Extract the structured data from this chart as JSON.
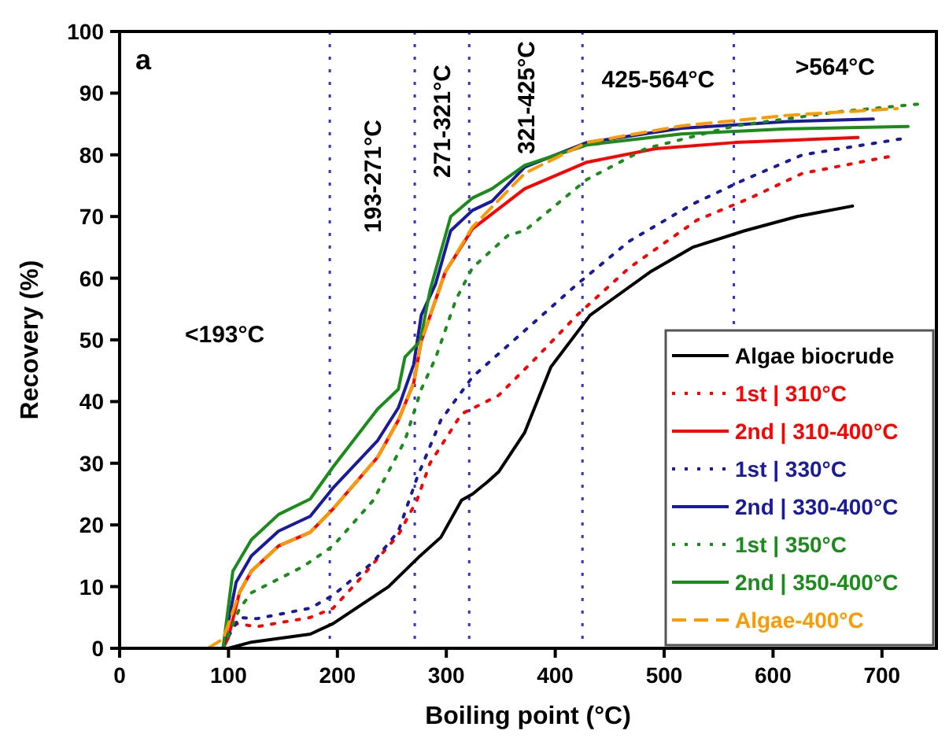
{
  "chart_data": {
    "type": "line",
    "xlabel": "Boiling point (°C)",
    "ylabel": "Recovery (%)",
    "xlim": [
      0,
      750
    ],
    "ylim": [
      0,
      100
    ],
    "xticks": [
      0,
      100,
      200,
      300,
      400,
      500,
      600,
      700
    ],
    "yticks": [
      0,
      10,
      20,
      30,
      40,
      50,
      60,
      70,
      80,
      90,
      100
    ],
    "grid": false,
    "legend": "bottom right",
    "marker": "none",
    "annotations": [
      "a",
      "<193°C",
      "193-271°C",
      "271-321°C",
      "321-425°C",
      "425-564°C",
      ">564°C"
    ],
    "ref_lines": [
      {
        "axis": "x",
        "value": 193,
        "color": "#3333cc",
        "line_style": "dotted"
      },
      {
        "axis": "x",
        "value": 271,
        "color": "#3333cc",
        "line_style": "dotted"
      },
      {
        "axis": "x",
        "value": 321,
        "color": "#3333cc",
        "line_style": "dotted"
      },
      {
        "axis": "x",
        "value": 425,
        "color": "#3333cc",
        "line_style": "dotted"
      },
      {
        "axis": "x",
        "value": 564,
        "color": "#3333cc",
        "line_style": "dotted"
      }
    ],
    "series": [
      {
        "name": "Algae biocrude",
        "color": "#000000",
        "line_style": "solid",
        "x": [
          95,
          100,
          121,
          175,
          196,
          247,
          276,
          295,
          314,
          324,
          338,
          348,
          372,
          396,
          432,
          487,
          526,
          574,
          622,
          673
        ],
        "values": [
          0,
          0,
          1,
          2.3,
          4,
          10,
          15,
          18,
          24,
          25,
          27,
          28.6,
          35,
          45.6,
          54,
          61,
          65,
          67.7,
          70,
          71.7
        ]
      },
      {
        "name": "1st | 310°C",
        "color": "#ff0000",
        "line_style": "dotted",
        "x": [
          100,
          107,
          126,
          175,
          196,
          218,
          256,
          273,
          285,
          314,
          348,
          382,
          420,
          468,
          530,
          579,
          627,
          709
        ],
        "values": [
          2,
          4,
          3.5,
          5,
          6.5,
          10.7,
          18.4,
          24,
          30,
          38,
          41,
          47,
          54,
          61.7,
          69.4,
          73,
          77,
          79.8
        ]
      },
      {
        "name": "2nd | 310-400°C",
        "color": "#ff0000",
        "line_style": "solid",
        "x": [
          95,
          100,
          110,
          121,
          146,
          175,
          196,
          237,
          256,
          270,
          277,
          299,
          324,
          372,
          429,
          492,
          565,
          678
        ],
        "values": [
          0,
          1.8,
          9,
          12.5,
          16.6,
          18.8,
          22.6,
          31,
          37,
          43,
          49.8,
          61,
          68,
          74.5,
          78.8,
          81,
          82,
          82.8
        ]
      },
      {
        "name": "1st | 330°C",
        "color": "#1a1a9c",
        "line_style": "dotted",
        "x": [
          100,
          110,
          126,
          175,
          196,
          233,
          256,
          273,
          295,
          324,
          372,
          420,
          468,
          526,
          574,
          627,
          718
        ],
        "values": [
          2,
          5,
          4.8,
          6.5,
          8.6,
          14,
          19,
          27.6,
          37,
          44,
          51.5,
          59,
          66,
          72,
          76,
          80,
          82.6
        ]
      },
      {
        "name": "2nd | 330-400°C",
        "color": "#1a1a9c",
        "line_style": "solid",
        "x": [
          95,
          107,
          121,
          146,
          175,
          196,
          237,
          256,
          270,
          277,
          290,
          304,
          324,
          342,
          372,
          429,
          516,
          613,
          692
        ],
        "values": [
          0,
          10.7,
          15,
          19,
          21.4,
          26,
          33.7,
          39,
          46,
          54,
          59,
          67.7,
          71,
          72.5,
          78,
          82,
          84.3,
          85.4,
          85.8
        ]
      },
      {
        "name": "1st | 350°C",
        "color": "#1a8c1a",
        "line_style": "dotted",
        "x": [
          95,
          110,
          121,
          169,
          196,
          233,
          262,
          277,
          290,
          309,
          324,
          357,
          372,
          429,
          483,
          565,
          661,
          738
        ],
        "values": [
          0,
          6.4,
          9,
          13.3,
          16.6,
          24,
          33.7,
          42,
          47,
          56.6,
          61.7,
          67,
          67.7,
          76,
          81,
          84.7,
          87,
          88.3
        ]
      },
      {
        "name": "2nd | 350-400°C",
        "color": "#1a8c1a",
        "line_style": "solid",
        "x": [
          95,
          104,
          121,
          146,
          175,
          196,
          237,
          256,
          262,
          276,
          285,
          304,
          324,
          342,
          372,
          429,
          516,
          613,
          724
        ],
        "values": [
          0,
          12.5,
          17.6,
          21.7,
          24.2,
          29.4,
          38.8,
          42,
          47.2,
          49.8,
          58,
          70,
          73,
          74.5,
          78.3,
          81.6,
          83.4,
          84.2,
          84.6
        ]
      },
      {
        "name": "Algae-400°C",
        "color": "#ff9900",
        "line_style": "dashed",
        "x": [
          81,
          95,
          110,
          121,
          146,
          175,
          196,
          237,
          256,
          270,
          277,
          299,
          324,
          372,
          429,
          516,
          613,
          714
        ],
        "values": [
          0,
          1.5,
          9,
          12.5,
          16.6,
          18.8,
          22.6,
          31,
          37,
          43,
          49.8,
          61,
          68.3,
          77,
          82,
          84.7,
          86.4,
          87.5
        ]
      }
    ]
  }
}
